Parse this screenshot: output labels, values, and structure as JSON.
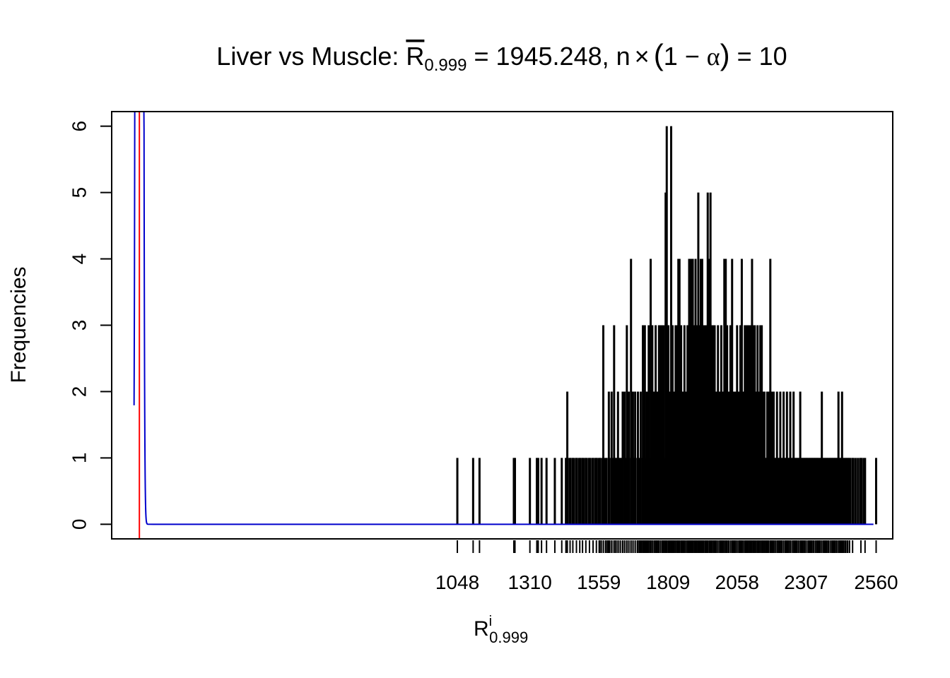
{
  "chart_data": {
    "type": "histogram",
    "title": {
      "prefix": "Liver vs Muscle: ",
      "stat_symbol": "R",
      "stat_subscript": "0.999",
      "stat_eq": " = 1945.248, n",
      "times": "×",
      "paren_open": "(",
      "one_minus": "1 − ",
      "alpha": "α",
      "paren_close": ")",
      "suffix": " = 10"
    },
    "xlabel": {
      "main": "R",
      "superscript": "i",
      "subscript": "0.999"
    },
    "ylabel": "Frequencies",
    "xlim": [
      -200,
      2620
    ],
    "ylim": [
      -0.22,
      6.22
    ],
    "y_ticks": [
      0,
      1,
      2,
      3,
      4,
      5,
      6
    ],
    "x_tick_labels": [
      1048,
      1310,
      1559,
      1809,
      2058,
      2307,
      2560
    ],
    "red_line_x": -100,
    "blue_density": {
      "peak_x": -100,
      "sd": 6
    },
    "spikes": [
      {
        "x": 1048,
        "y": 1
      },
      {
        "x": 1105,
        "y": 1
      },
      {
        "x": 1128,
        "y": 1
      },
      {
        "x": 1252,
        "y": 1
      },
      {
        "x": 1256,
        "y": 1
      },
      {
        "x": 1310,
        "y": 1
      },
      {
        "x": 1335,
        "y": 1
      },
      {
        "x": 1340,
        "y": 1
      },
      {
        "x": 1352,
        "y": 1
      },
      {
        "x": 1370,
        "y": 1
      },
      {
        "x": 1400,
        "y": 1
      },
      {
        "x": 1425,
        "y": 1
      },
      {
        "x": 1440,
        "y": 1
      },
      {
        "x": 1445,
        "y": 2
      },
      {
        "x": 1455,
        "y": 1
      },
      {
        "x": 1465,
        "y": 1
      },
      {
        "x": 1478,
        "y": 1
      },
      {
        "x": 1490,
        "y": 1
      },
      {
        "x": 1500,
        "y": 1
      },
      {
        "x": 1512,
        "y": 1
      },
      {
        "x": 1525,
        "y": 1
      },
      {
        "x": 1538,
        "y": 1
      },
      {
        "x": 1550,
        "y": 1
      },
      {
        "x": 1562,
        "y": 1
      },
      {
        "x": 1575,
        "y": 3
      },
      {
        "x": 1585,
        "y": 1
      },
      {
        "x": 1595,
        "y": 2
      },
      {
        "x": 1605,
        "y": 2
      },
      {
        "x": 1614,
        "y": 3
      },
      {
        "x": 1620,
        "y": 1
      },
      {
        "x": 1628,
        "y": 2
      },
      {
        "x": 1636,
        "y": 1
      },
      {
        "x": 1645,
        "y": 2
      },
      {
        "x": 1652,
        "y": 2
      },
      {
        "x": 1660,
        "y": 3
      },
      {
        "x": 1667,
        "y": 2
      },
      {
        "x": 1675,
        "y": 4
      },
      {
        "x": 1682,
        "y": 2
      },
      {
        "x": 1690,
        "y": 2
      },
      {
        "x": 1700,
        "y": 2
      },
      {
        "x": 1710,
        "y": 2
      },
      {
        "x": 1718,
        "y": 3
      },
      {
        "x": 1725,
        "y": 3
      },
      {
        "x": 1732,
        "y": 2
      },
      {
        "x": 1739,
        "y": 3
      },
      {
        "x": 1746,
        "y": 4
      },
      {
        "x": 1752,
        "y": 3
      },
      {
        "x": 1758,
        "y": 2
      },
      {
        "x": 1764,
        "y": 3
      },
      {
        "x": 1770,
        "y": 2
      },
      {
        "x": 1776,
        "y": 3
      },
      {
        "x": 1782,
        "y": 3
      },
      {
        "x": 1788,
        "y": 3
      },
      {
        "x": 1793,
        "y": 3
      },
      {
        "x": 1800,
        "y": 5
      },
      {
        "x": 1804,
        "y": 6
      },
      {
        "x": 1810,
        "y": 3
      },
      {
        "x": 1815,
        "y": 2
      },
      {
        "x": 1820,
        "y": 6
      },
      {
        "x": 1825,
        "y": 3
      },
      {
        "x": 1831,
        "y": 2
      },
      {
        "x": 1836,
        "y": 3
      },
      {
        "x": 1841,
        "y": 3
      },
      {
        "x": 1846,
        "y": 4
      },
      {
        "x": 1850,
        "y": 4
      },
      {
        "x": 1856,
        "y": 3
      },
      {
        "x": 1862,
        "y": 2
      },
      {
        "x": 1868,
        "y": 3
      },
      {
        "x": 1873,
        "y": 2
      },
      {
        "x": 1879,
        "y": 3
      },
      {
        "x": 1885,
        "y": 4
      },
      {
        "x": 1890,
        "y": 4
      },
      {
        "x": 1894,
        "y": 4
      },
      {
        "x": 1898,
        "y": 4
      },
      {
        "x": 1903,
        "y": 3
      },
      {
        "x": 1908,
        "y": 4
      },
      {
        "x": 1913,
        "y": 3
      },
      {
        "x": 1918,
        "y": 5
      },
      {
        "x": 1922,
        "y": 3
      },
      {
        "x": 1927,
        "y": 4
      },
      {
        "x": 1932,
        "y": 4
      },
      {
        "x": 1937,
        "y": 3
      },
      {
        "x": 1942,
        "y": 3
      },
      {
        "x": 1947,
        "y": 3
      },
      {
        "x": 1952,
        "y": 5
      },
      {
        "x": 1957,
        "y": 4
      },
      {
        "x": 1962,
        "y": 5
      },
      {
        "x": 1967,
        "y": 3
      },
      {
        "x": 1972,
        "y": 3
      },
      {
        "x": 1977,
        "y": 3
      },
      {
        "x": 1983,
        "y": 2
      },
      {
        "x": 1989,
        "y": 3
      },
      {
        "x": 1995,
        "y": 2
      },
      {
        "x": 2001,
        "y": 3
      },
      {
        "x": 2007,
        "y": 2
      },
      {
        "x": 2012,
        "y": 4
      },
      {
        "x": 2017,
        "y": 4
      },
      {
        "x": 2022,
        "y": 3
      },
      {
        "x": 2028,
        "y": 2
      },
      {
        "x": 2034,
        "y": 3
      },
      {
        "x": 2040,
        "y": 4
      },
      {
        "x": 2046,
        "y": 2
      },
      {
        "x": 2052,
        "y": 2
      },
      {
        "x": 2058,
        "y": 3
      },
      {
        "x": 2064,
        "y": 2
      },
      {
        "x": 2070,
        "y": 3
      },
      {
        "x": 2075,
        "y": 4
      },
      {
        "x": 2080,
        "y": 2
      },
      {
        "x": 2086,
        "y": 3
      },
      {
        "x": 2092,
        "y": 3
      },
      {
        "x": 2097,
        "y": 3
      },
      {
        "x": 2102,
        "y": 3
      },
      {
        "x": 2107,
        "y": 3
      },
      {
        "x": 2112,
        "y": 4
      },
      {
        "x": 2117,
        "y": 3
      },
      {
        "x": 2122,
        "y": 3
      },
      {
        "x": 2127,
        "y": 2
      },
      {
        "x": 2132,
        "y": 3
      },
      {
        "x": 2137,
        "y": 2
      },
      {
        "x": 2142,
        "y": 3
      },
      {
        "x": 2147,
        "y": 3
      },
      {
        "x": 2152,
        "y": 2
      },
      {
        "x": 2157,
        "y": 2
      },
      {
        "x": 2162,
        "y": 1
      },
      {
        "x": 2167,
        "y": 2
      },
      {
        "x": 2172,
        "y": 2
      },
      {
        "x": 2178,
        "y": 4
      },
      {
        "x": 2184,
        "y": 2
      },
      {
        "x": 2190,
        "y": 2
      },
      {
        "x": 2196,
        "y": 1
      },
      {
        "x": 2202,
        "y": 2
      },
      {
        "x": 2208,
        "y": 1
      },
      {
        "x": 2214,
        "y": 2
      },
      {
        "x": 2220,
        "y": 1
      },
      {
        "x": 2226,
        "y": 2
      },
      {
        "x": 2232,
        "y": 1
      },
      {
        "x": 2238,
        "y": 2
      },
      {
        "x": 2244,
        "y": 1
      },
      {
        "x": 2250,
        "y": 2
      },
      {
        "x": 2256,
        "y": 1
      },
      {
        "x": 2262,
        "y": 2
      },
      {
        "x": 2268,
        "y": 1
      },
      {
        "x": 2274,
        "y": 1
      },
      {
        "x": 2280,
        "y": 1
      },
      {
        "x": 2286,
        "y": 2
      },
      {
        "x": 2292,
        "y": 1
      },
      {
        "x": 2298,
        "y": 1
      },
      {
        "x": 2304,
        "y": 1
      },
      {
        "x": 2310,
        "y": 1
      },
      {
        "x": 2316,
        "y": 1
      },
      {
        "x": 2322,
        "y": 1
      },
      {
        "x": 2328,
        "y": 1
      },
      {
        "x": 2334,
        "y": 1
      },
      {
        "x": 2340,
        "y": 1
      },
      {
        "x": 2346,
        "y": 1
      },
      {
        "x": 2352,
        "y": 1
      },
      {
        "x": 2358,
        "y": 1
      },
      {
        "x": 2364,
        "y": 2
      },
      {
        "x": 2370,
        "y": 1
      },
      {
        "x": 2376,
        "y": 1
      },
      {
        "x": 2382,
        "y": 1
      },
      {
        "x": 2388,
        "y": 1
      },
      {
        "x": 2394,
        "y": 1
      },
      {
        "x": 2400,
        "y": 1
      },
      {
        "x": 2406,
        "y": 1
      },
      {
        "x": 2412,
        "y": 1
      },
      {
        "x": 2418,
        "y": 1
      },
      {
        "x": 2424,
        "y": 2
      },
      {
        "x": 2430,
        "y": 1
      },
      {
        "x": 2437,
        "y": 2
      },
      {
        "x": 2443,
        "y": 1
      },
      {
        "x": 2450,
        "y": 1
      },
      {
        "x": 2457,
        "y": 1
      },
      {
        "x": 2464,
        "y": 1
      },
      {
        "x": 2475,
        "y": 1
      },
      {
        "x": 2505,
        "y": 1
      },
      {
        "x": 2520,
        "y": 1
      },
      {
        "x": 2560,
        "y": 1
      }
    ]
  }
}
